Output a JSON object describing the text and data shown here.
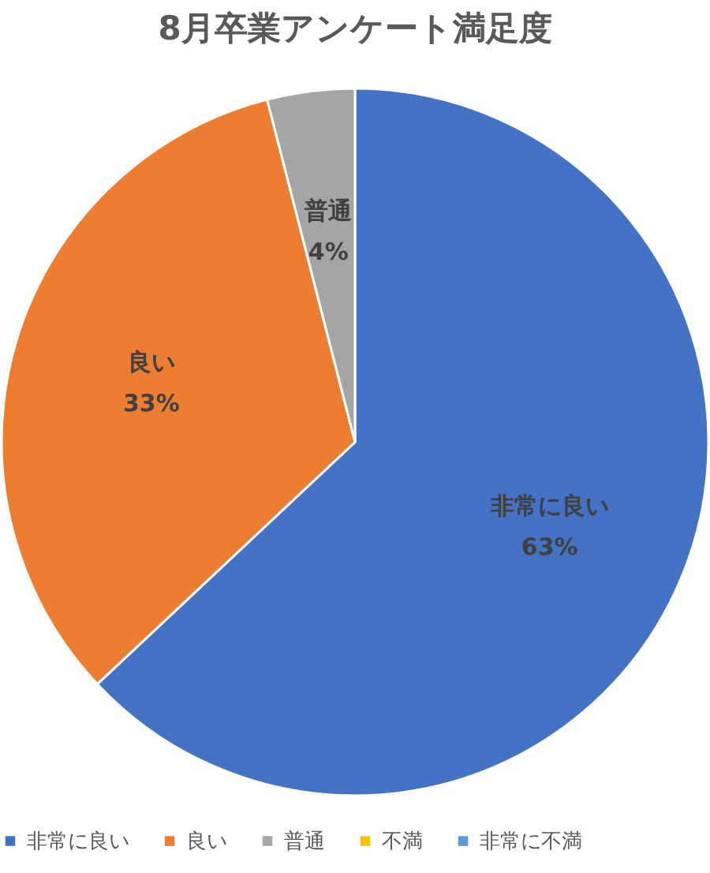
{
  "chart_data": {
    "type": "pie",
    "title": "8月卒業アンケート満足度",
    "categories": [
      "非常に良い",
      "良い",
      "普通",
      "不満",
      "非常に不満"
    ],
    "values": [
      63,
      33,
      4,
      0,
      0
    ],
    "colors": [
      "#4472c4",
      "#ed7d31",
      "#a5a5a5",
      "#ffc000",
      "#5b9bd5"
    ],
    "value_labels": [
      "63%",
      "33%",
      "4%",
      null,
      null
    ],
    "legend": "bottom"
  }
}
